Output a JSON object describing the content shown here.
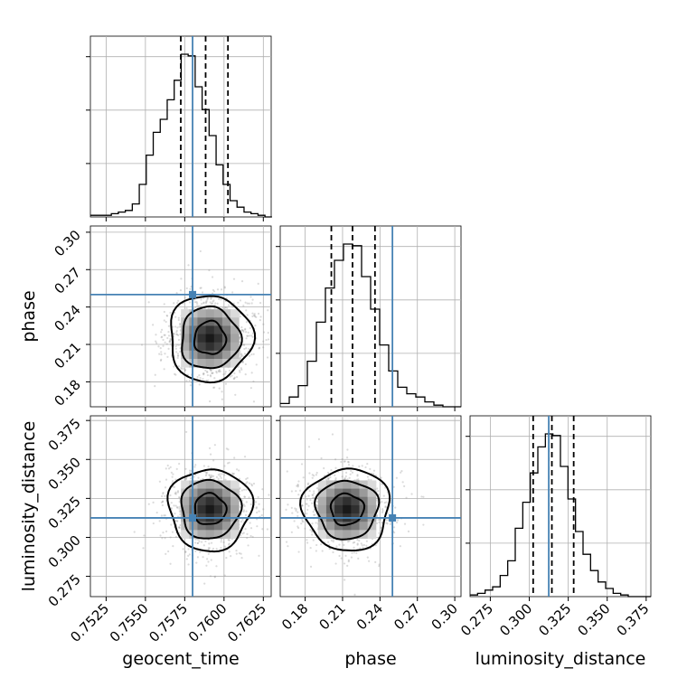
{
  "chart_data": {
    "type": "corner",
    "parameters": [
      {
        "name": "geocent_time",
        "label": "geocent_time",
        "range": [
          0.7515,
          0.763
        ],
        "ticks": [
          "0.7525",
          "0.7550",
          "0.7575",
          "0.7600",
          "0.7625"
        ],
        "truth": 0.758,
        "quantiles": [
          0.75725,
          0.75883,
          0.76025
        ],
        "hist_bins": [
          0.7515,
          0.76305
        ],
        "hist_counts": [
          1,
          1,
          1,
          2,
          3,
          4,
          8,
          20,
          38,
          52,
          60,
          72,
          84,
          100,
          99,
          80,
          66,
          50,
          32,
          20,
          10,
          6,
          3,
          2,
          1,
          0
        ]
      },
      {
        "name": "phase",
        "label": "phase",
        "range": [
          0.16,
          0.305
        ],
        "ticks": [
          "0.18",
          "0.21",
          "0.24",
          "0.27",
          "0.30"
        ],
        "truth": 0.25,
        "quantiles": [
          0.201,
          0.218,
          0.236
        ],
        "hist_bins": [
          0.16,
          0.305
        ],
        "hist_counts": [
          2,
          6,
          13,
          28,
          52,
          73,
          90,
          100,
          99,
          80,
          60,
          38,
          22,
          12,
          8,
          6,
          3,
          1,
          0,
          0
        ]
      },
      {
        "name": "luminosity_distance",
        "label": "luminosity_distance",
        "range": [
          0.262,
          0.378
        ],
        "ticks": [
          "0.275",
          "0.300",
          "0.325",
          "0.350",
          "0.375"
        ],
        "truth": 0.3125,
        "quantiles": [
          0.3025,
          0.3145,
          0.3285
        ],
        "hist_bins": [
          0.262,
          0.378
        ],
        "hist_counts": [
          1,
          2,
          4,
          6,
          13,
          22,
          42,
          58,
          76,
          92,
          100,
          99,
          80,
          60,
          40,
          26,
          16,
          9,
          5,
          2,
          1,
          0,
          0,
          0
        ]
      }
    ],
    "pair_ticks": {
      "phase_y": [
        "0.18",
        "0.21",
        "0.24",
        "0.27",
        "0.30"
      ],
      "luminosity_distance_y": [
        "0.275",
        "0.300",
        "0.325",
        "0.350",
        "0.375"
      ]
    },
    "colors": {
      "truth": "#4682b4",
      "hist": "#000000",
      "density": "#000000"
    }
  },
  "labels": {
    "x1": "geocent_time",
    "x2": "phase",
    "x3": "luminosity_distance",
    "y2": "phase",
    "y3": "luminosity_distance"
  }
}
